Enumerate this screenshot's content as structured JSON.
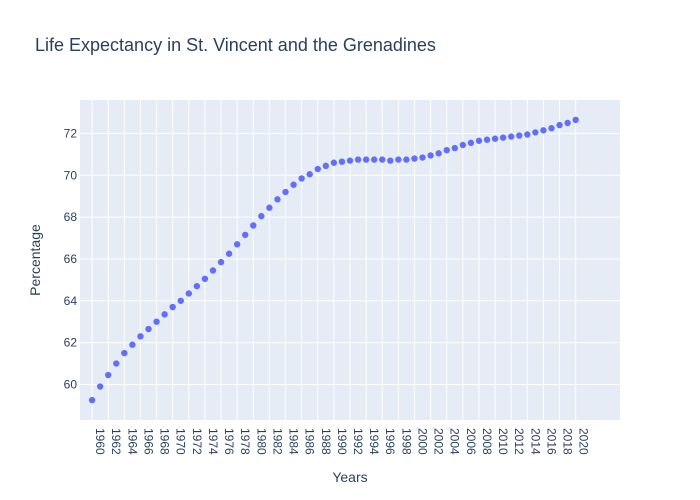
{
  "chart_data": {
    "type": "scatter",
    "title": "Life Expectancy in St. Vincent and the Grenadines",
    "xlabel": "Years",
    "ylabel": "Percentage",
    "x": [
      1960,
      1961,
      1962,
      1963,
      1964,
      1965,
      1966,
      1967,
      1968,
      1969,
      1970,
      1971,
      1972,
      1973,
      1974,
      1975,
      1976,
      1977,
      1978,
      1979,
      1980,
      1981,
      1982,
      1983,
      1984,
      1985,
      1986,
      1987,
      1988,
      1989,
      1990,
      1991,
      1992,
      1993,
      1994,
      1995,
      1996,
      1997,
      1998,
      1999,
      2000,
      2001,
      2002,
      2003,
      2004,
      2005,
      2006,
      2007,
      2008,
      2009,
      2010,
      2011,
      2012,
      2013,
      2014,
      2015,
      2016,
      2017,
      2018,
      2019,
      2020
    ],
    "y": [
      59.25,
      59.9,
      60.45,
      61.0,
      61.5,
      61.9,
      62.3,
      62.65,
      63.0,
      63.35,
      63.7,
      64.0,
      64.35,
      64.7,
      65.05,
      65.45,
      65.85,
      66.25,
      66.7,
      67.15,
      67.6,
      68.05,
      68.45,
      68.85,
      69.2,
      69.55,
      69.85,
      70.05,
      70.3,
      70.45,
      70.6,
      70.65,
      70.7,
      70.75,
      70.75,
      70.75,
      70.75,
      70.7,
      70.75,
      70.75,
      70.8,
      70.85,
      70.95,
      71.05,
      71.2,
      71.3,
      71.45,
      71.55,
      71.65,
      71.7,
      71.75,
      71.8,
      71.85,
      71.9,
      71.95,
      72.05,
      72.15,
      72.25,
      72.4,
      72.5,
      72.65
    ],
    "x_tick_labels": [
      "1960",
      "1962",
      "1964",
      "1966",
      "1968",
      "1970",
      "1972",
      "1974",
      "1976",
      "1978",
      "1980",
      "1982",
      "1984",
      "1986",
      "1988",
      "1990",
      "1992",
      "1994",
      "1996",
      "1998",
      "2000",
      "2002",
      "2004",
      "2006",
      "2008",
      "2010",
      "2012",
      "2014",
      "2016",
      "2018",
      "2020"
    ],
    "y_ticks": [
      60,
      62,
      64,
      66,
      68,
      70,
      72
    ],
    "xlim": [
      1958.5,
      2025.5
    ],
    "ylim": [
      58.3,
      73.6
    ],
    "grid": true,
    "colors": {
      "marker": "#636efa",
      "plot_bg": "#e5ecf6",
      "grid": "#ffffff",
      "text": "#2a3f5f"
    }
  }
}
